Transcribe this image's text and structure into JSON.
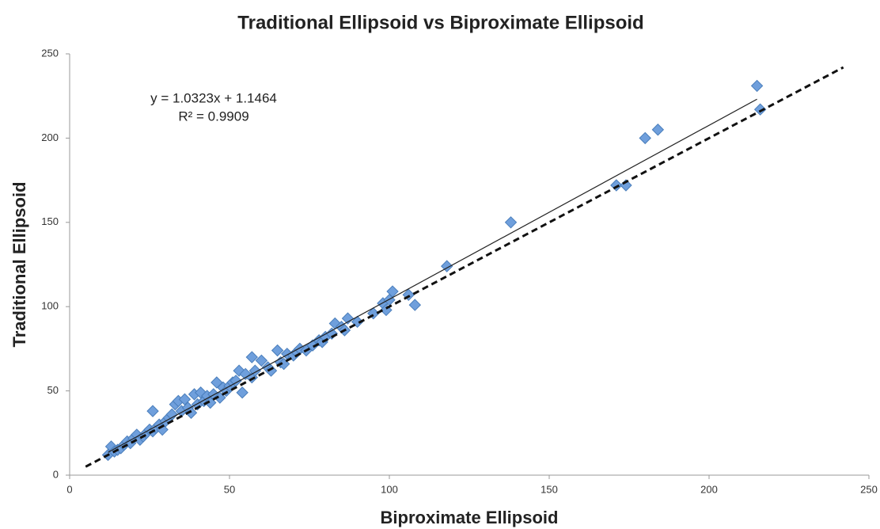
{
  "chart_data": {
    "type": "scatter",
    "title": "Traditional Ellipsoid vs Biproximate Ellipsoid",
    "x_label": "Biproximate Ellipsoid",
    "y_label": "Traditional Ellipsoid",
    "annotations": [
      "y = 1.0323x + 1.1464",
      "R² = 0.9909"
    ],
    "xlim": [
      0,
      250
    ],
    "xticks": [
      0,
      50,
      100,
      150,
      200,
      250
    ],
    "ylim": [
      0,
      250
    ],
    "yticks": [
      0,
      50,
      100,
      150,
      200,
      250
    ],
    "grid": false,
    "series": [
      {
        "name": "Traditional Ellipsoid",
        "color": "#6f9fdc",
        "x": [
          12,
          13,
          14,
          15,
          16,
          17,
          18,
          19,
          20,
          21,
          22,
          23,
          24,
          25,
          26,
          26,
          27,
          28,
          29,
          30,
          31,
          32,
          33,
          34,
          35,
          36,
          37,
          38,
          39,
          40,
          41,
          42,
          43,
          44,
          45,
          46,
          47,
          48,
          49,
          50,
          51,
          52,
          53,
          54,
          55,
          57,
          57,
          58,
          60,
          62,
          63,
          65,
          66,
          67,
          68,
          70,
          71,
          72,
          74,
          76,
          78,
          79,
          80,
          82,
          83,
          85,
          86,
          87,
          90,
          95,
          98,
          99,
          100,
          101,
          106,
          108,
          118,
          138,
          171,
          174,
          180,
          184,
          215,
          216
        ],
        "values": [
          12,
          17,
          14,
          15,
          16,
          18,
          20,
          19,
          22,
          24,
          21,
          23,
          25,
          27,
          38,
          26,
          28,
          30,
          27,
          32,
          34,
          36,
          42,
          44,
          38,
          45,
          40,
          37,
          48,
          42,
          49,
          44,
          47,
          43,
          48,
          55,
          46,
          52,
          50,
          53,
          55,
          56,
          62,
          49,
          60,
          58,
          70,
          62,
          68,
          64,
          62,
          74,
          67,
          66,
          72,
          71,
          73,
          75,
          74,
          77,
          80,
          79,
          82,
          84,
          90,
          88,
          86,
          93,
          91,
          96,
          102,
          98,
          104,
          109,
          107,
          101,
          124,
          150,
          172,
          172,
          200,
          205,
          231,
          217
        ]
      }
    ],
    "lines": [
      {
        "style": "solid",
        "color": "#222222",
        "x": [
          12,
          215
        ],
        "y": [
          13.5,
          223.1
        ]
      },
      {
        "style": "dashed",
        "color": "#111111",
        "x": [
          5,
          242
        ],
        "y": [
          5,
          242
        ]
      }
    ]
  }
}
